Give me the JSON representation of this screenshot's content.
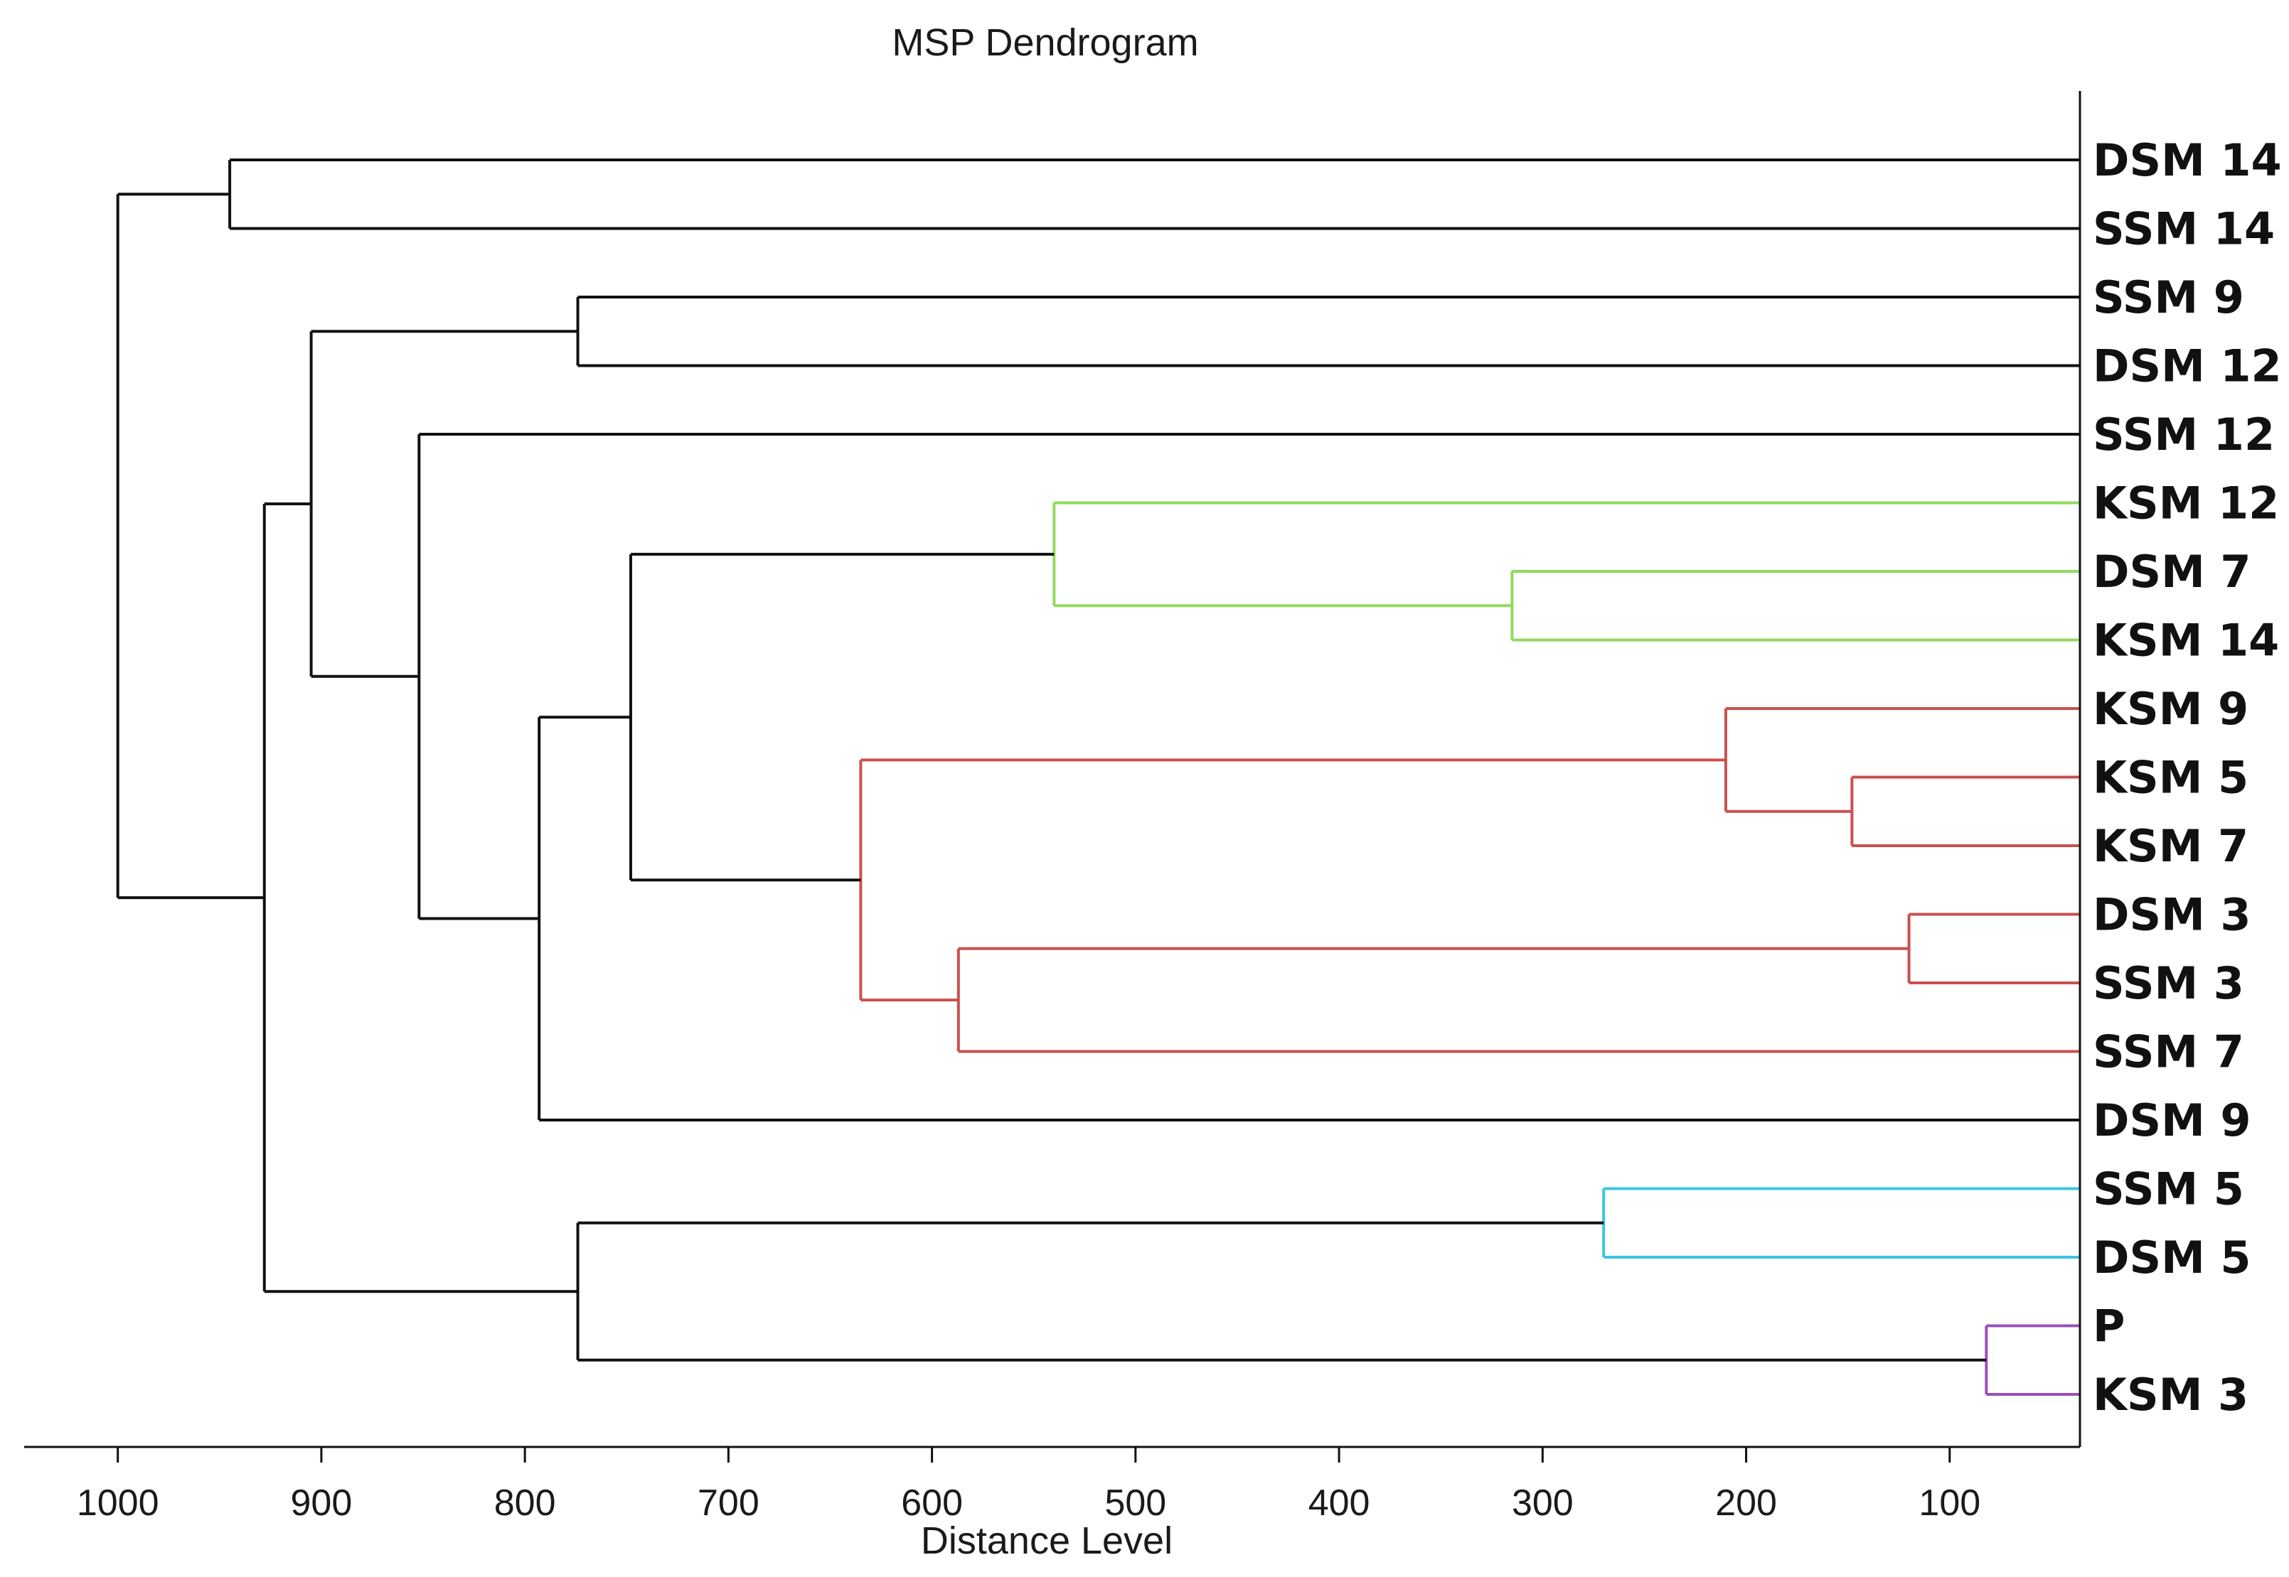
{
  "chart_data": {
    "type": "dendrogram",
    "title": "MSP Dendrogram",
    "xlabel": "Distance Level",
    "x_ticks": [
      1000,
      900,
      800,
      700,
      600,
      500,
      400,
      300,
      200,
      100
    ],
    "x_range": [
      1046,
      36
    ],
    "leaves": [
      "DSM 14",
      "SSM 14",
      "SSM 9",
      "DSM 12",
      "SSM 12",
      "KSM 12",
      "DSM 7",
      "KSM 14",
      "KSM 9",
      "KSM 5",
      "KSM 7",
      "DSM 3",
      "SSM 3",
      "SSM 7",
      "DSM 9",
      "SSM 5",
      "DSM 5",
      "P",
      "KSM 3"
    ],
    "merges": [
      {
        "id": "n_p_ksm3",
        "a": "P",
        "b": "KSM 3",
        "distance": 82,
        "color": "#9b4fb8"
      },
      {
        "id": "n_dsm3_ssm3",
        "a": "DSM 3",
        "b": "SSM 3",
        "distance": 120,
        "color": "#c9504f"
      },
      {
        "id": "n_ksm5_ksm7",
        "a": "KSM 5",
        "b": "KSM 7",
        "distance": 148,
        "color": "#c9504f"
      },
      {
        "id": "n_ksm9_grp",
        "a": "KSM 9",
        "b": "n_ksm5_ksm7",
        "distance": 210,
        "color": "#c9504f"
      },
      {
        "id": "n_ssm5_dsm5",
        "a": "SSM 5",
        "b": "DSM 5",
        "distance": 270,
        "color": "#39c7de"
      },
      {
        "id": "n_dsm7_ksm14",
        "a": "DSM 7",
        "b": "KSM 14",
        "distance": 315,
        "color": "#8fdb5c"
      },
      {
        "id": "n_ksm12_grp",
        "a": "KSM 12",
        "b": "n_dsm7_ksm14",
        "distance": 540,
        "color": "#8fdb5c"
      },
      {
        "id": "n_ssm3grp_ssm7",
        "a": "n_dsm3_ssm3",
        "b": "SSM 7",
        "distance": 587,
        "color": "#c9504f"
      },
      {
        "id": "n_red",
        "a": "n_ksm9_grp",
        "b": "n_ssm3grp_ssm7",
        "distance": 635,
        "color": "#c9504f"
      },
      {
        "id": "n_green_red",
        "a": "n_ksm12_grp",
        "b": "n_red",
        "distance": 748,
        "color": "#111111"
      },
      {
        "id": "n_ssm9_dsm12",
        "a": "SSM 9",
        "b": "DSM 12",
        "distance": 774,
        "color": "#111111"
      },
      {
        "id": "n_bottom",
        "a": "n_ssm5_dsm5",
        "b": "n_p_ksm3",
        "distance": 774,
        "color": "#111111"
      },
      {
        "id": "n_mid_dsm9",
        "a": "n_green_red",
        "b": "DSM 9",
        "distance": 793,
        "color": "#111111"
      },
      {
        "id": "n_ssm12_grp",
        "a": "SSM 12",
        "b": "n_mid_dsm9",
        "distance": 852,
        "color": "#111111"
      },
      {
        "id": "n_upper",
        "a": "n_ssm9_dsm12",
        "b": "n_ssm12_grp",
        "distance": 905,
        "color": "#111111"
      },
      {
        "id": "n_lower_all",
        "a": "n_upper",
        "b": "n_bottom",
        "distance": 928,
        "color": "#111111"
      },
      {
        "id": "n_dsm14_ssm14",
        "a": "DSM 14",
        "b": "SSM 14",
        "distance": 945,
        "color": "#111111"
      },
      {
        "id": "n_root",
        "a": "n_dsm14_ssm14",
        "b": "n_lower_all",
        "distance": 1000,
        "color": "#111111"
      }
    ]
  }
}
